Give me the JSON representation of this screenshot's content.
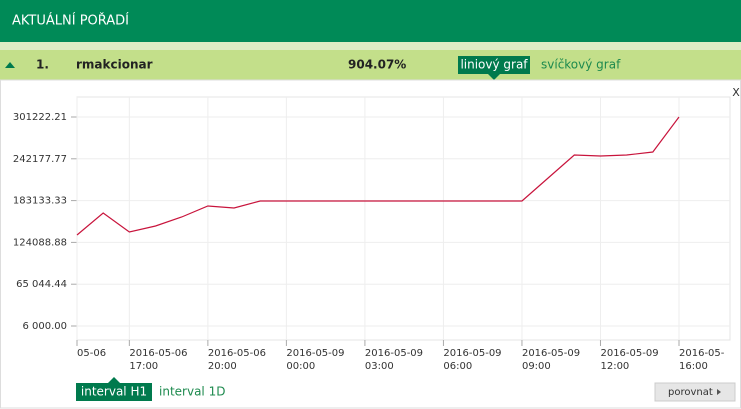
{
  "header": {
    "title": "AKTUÁLNÍ POŘADÍ"
  },
  "row": {
    "rank": "1.",
    "name": "rmakcionar",
    "result": "904.07%",
    "tabs": [
      "liniový graf",
      "svíčkový graf"
    ]
  },
  "close": "X",
  "chart_data": {
    "type": "line",
    "categories": [
      "05-06",
      null,
      "2016-05-06\n17:00",
      null,
      null,
      "2016-05-06\n20:00",
      null,
      null,
      "2016-05-09\n00:00",
      null,
      null,
      "2016-05-09\n03:00",
      null,
      null,
      "2016-05-09\n06:00",
      null,
      null,
      "2016-05-09\n09:00",
      null,
      null,
      "2016-05-09\n12:00",
      null,
      null,
      "2016-05-\n16:00"
    ],
    "series": [
      {
        "color": "#c8143c",
        "values": [
          134538,
          165612,
          138775,
          147250,
          159963,
          175500,
          172675,
          182562,
          182562,
          182562,
          182562,
          182562,
          182562,
          182562,
          182562,
          182562,
          182562,
          182562,
          215050,
          247538,
          246125,
          247538,
          251775,
          301222.21
        ]
      }
    ],
    "ylim": [
      -13775,
      329462.5
    ],
    "yticks": [
      {
        "value": 6000,
        "label": "6 000.00"
      },
      {
        "value": 65044.44,
        "label": "65 044.44"
      },
      124088.88,
      183133.33,
      242177.77,
      301222.21
    ],
    "grid": true
  },
  "intervals": [
    "interval H1",
    "interval 1D"
  ],
  "compare_button": "porovnat"
}
